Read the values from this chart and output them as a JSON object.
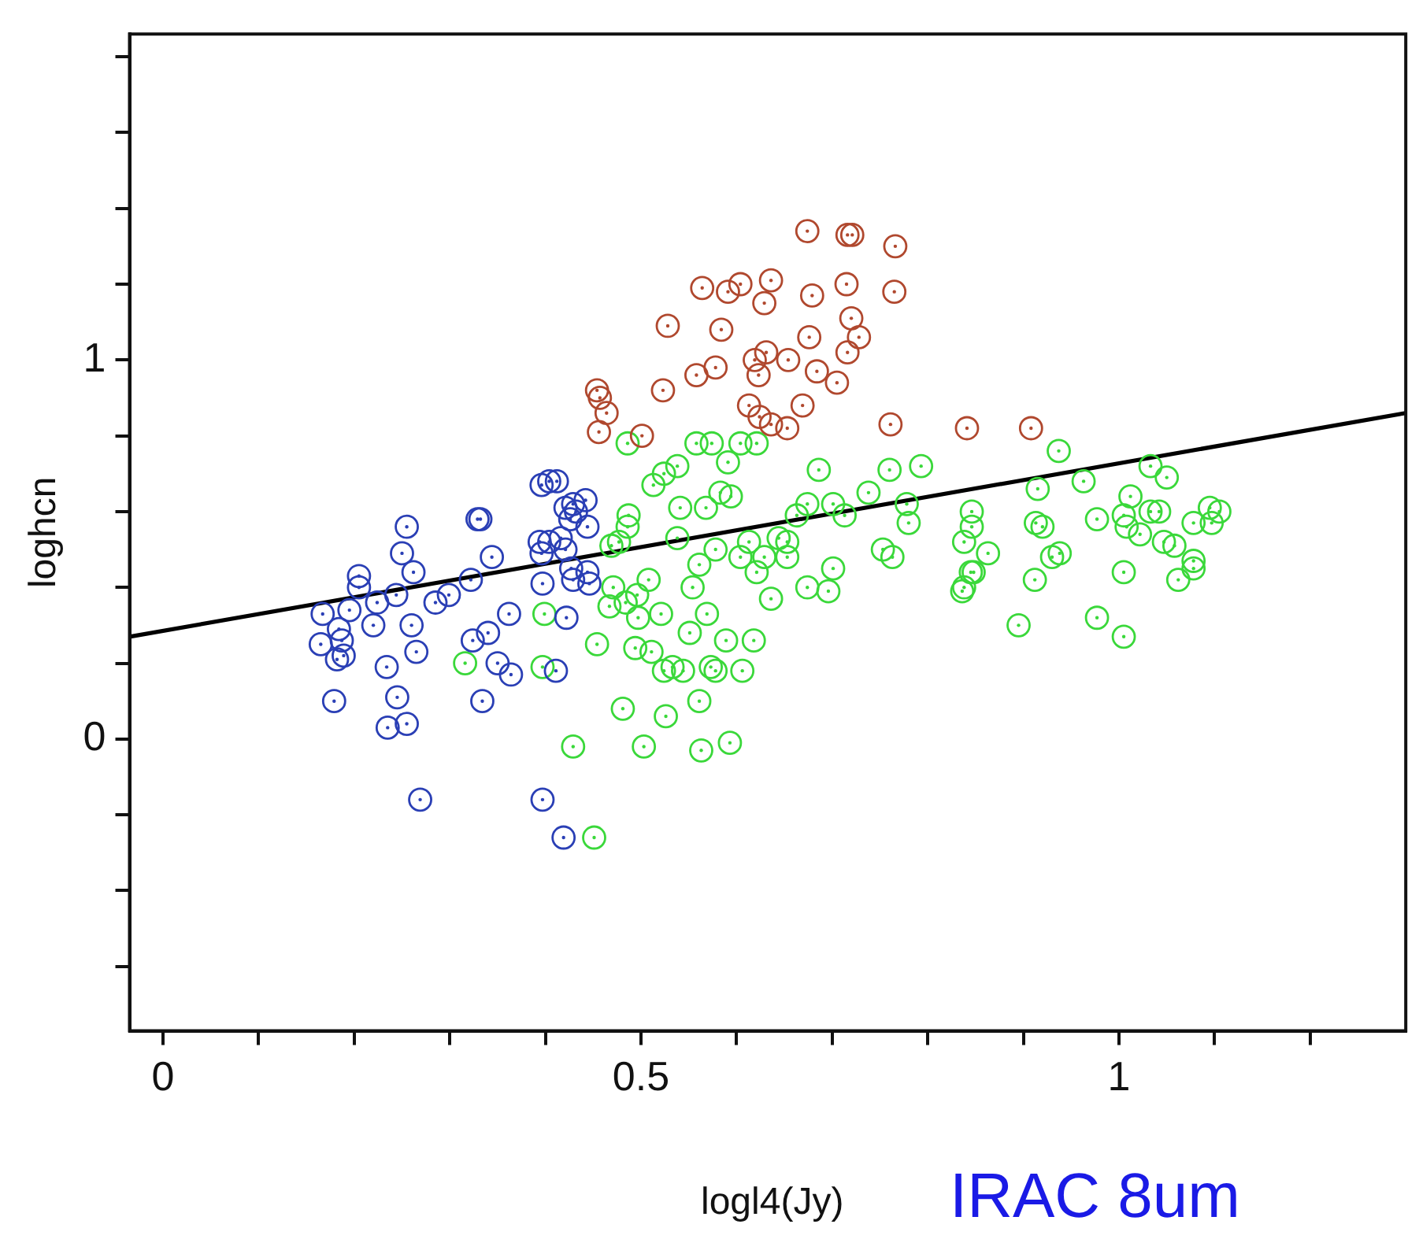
{
  "chart_data": {
    "type": "scatter",
    "xlabel": "logl4(Jy)",
    "ylabel": "loghcn",
    "annotations": [
      "IRAC 8um"
    ],
    "xlim": [
      -0.035,
      1.3
    ],
    "ylim": [
      -0.77,
      1.86
    ],
    "xticks": [
      {
        "value": 0,
        "label": "0"
      },
      {
        "value": 0.1,
        "label": null
      },
      {
        "value": 0.2,
        "label": null
      },
      {
        "value": 0.3,
        "label": null
      },
      {
        "value": 0.4,
        "label": null
      },
      {
        "value": 0.5,
        "label": "0.5"
      },
      {
        "value": 0.6,
        "label": null
      },
      {
        "value": 0.7,
        "label": null
      },
      {
        "value": 0.8,
        "label": null
      },
      {
        "value": 0.9,
        "label": null
      },
      {
        "value": 1,
        "label": "1"
      },
      {
        "value": 1.1,
        "label": null
      },
      {
        "value": 1.2,
        "label": null
      }
    ],
    "yticks": [
      {
        "value": -0.6,
        "label": null
      },
      {
        "value": -0.4,
        "label": null
      },
      {
        "value": -0.2,
        "label": null
      },
      {
        "value": 0,
        "label": "0"
      },
      {
        "value": 0.2,
        "label": null
      },
      {
        "value": 0.4,
        "label": null
      },
      {
        "value": 0.6,
        "label": null
      },
      {
        "value": 0.8,
        "label": null
      },
      {
        "value": 1,
        "label": "1"
      },
      {
        "value": 1.2,
        "label": null
      },
      {
        "value": 1.4,
        "label": null
      },
      {
        "value": 1.6,
        "label": null
      },
      {
        "value": 1.8,
        "label": null
      }
    ],
    "legend": false,
    "series": [
      {
        "color": "#2a3fb5",
        "marker": "circle",
        "x": [
          0.255,
          0.25,
          0.262,
          0.205,
          0.205,
          0.167,
          0.195,
          0.224,
          0.244,
          0.22,
          0.184,
          0.187,
          0.165,
          0.189,
          0.182,
          0.26,
          0.265,
          0.234,
          0.179,
          0.245,
          0.235,
          0.255,
          0.269,
          0.285,
          0.299,
          0.322,
          0.329,
          0.332,
          0.344,
          0.362,
          0.34,
          0.324,
          0.35,
          0.364,
          0.334,
          0.397,
          0.422,
          0.411,
          0.397,
          0.419,
          0.404,
          0.412,
          0.396,
          0.429,
          0.442,
          0.432,
          0.421,
          0.426,
          0.444,
          0.394,
          0.404,
          0.396,
          0.416,
          0.421,
          0.427,
          0.444,
          0.429,
          0.446
        ],
        "values": [
          0.56,
          0.49,
          0.44,
          0.43,
          0.4,
          0.33,
          0.34,
          0.36,
          0.38,
          0.3,
          0.29,
          0.26,
          0.25,
          0.22,
          0.21,
          0.3,
          0.23,
          0.19,
          0.1,
          0.11,
          0.03,
          0.04,
          -0.16,
          0.36,
          0.38,
          0.42,
          0.58,
          0.58,
          0.48,
          0.33,
          0.28,
          0.26,
          0.2,
          0.17,
          0.1,
          0.41,
          0.32,
          0.18,
          -0.16,
          -0.26,
          0.68,
          0.68,
          0.67,
          0.62,
          0.63,
          0.6,
          0.61,
          0.58,
          0.56,
          0.52,
          0.52,
          0.49,
          0.53,
          0.5,
          0.45,
          0.44,
          0.42,
          0.41
        ]
      },
      {
        "color": "#b0482e",
        "marker": "circle",
        "x": [
          0.674,
          0.716,
          0.721,
          0.766,
          0.564,
          0.591,
          0.604,
          0.636,
          0.629,
          0.679,
          0.715,
          0.765,
          0.528,
          0.584,
          0.72,
          0.728,
          0.676,
          0.716,
          0.631,
          0.619,
          0.623,
          0.654,
          0.684,
          0.705,
          0.578,
          0.558,
          0.523,
          0.669,
          0.613,
          0.624,
          0.636,
          0.653,
          0.454,
          0.457,
          0.464,
          0.456,
          0.501,
          0.761,
          0.841,
          0.908
        ],
        "values": [
          1.34,
          1.33,
          1.33,
          1.3,
          1.19,
          1.18,
          1.2,
          1.21,
          1.15,
          1.17,
          1.2,
          1.18,
          1.09,
          1.08,
          1.11,
          1.06,
          1.06,
          1.02,
          1.02,
          1.0,
          0.96,
          1.0,
          0.97,
          0.94,
          0.98,
          0.96,
          0.92,
          0.88,
          0.88,
          0.85,
          0.83,
          0.82,
          0.92,
          0.9,
          0.86,
          0.81,
          0.8,
          0.83,
          0.82,
          0.82
        ]
      },
      {
        "color": "#3ad83a",
        "marker": "circle",
        "x": [
          0.486,
          0.558,
          0.574,
          0.604,
          0.621,
          0.591,
          0.538,
          0.524,
          0.513,
          0.686,
          0.76,
          0.793,
          0.541,
          0.568,
          0.583,
          0.594,
          0.738,
          0.674,
          0.663,
          0.701,
          0.713,
          0.778,
          0.78,
          0.487,
          0.486,
          0.477,
          0.469,
          0.538,
          0.578,
          0.613,
          0.644,
          0.653,
          0.604,
          0.629,
          0.653,
          0.621,
          0.561,
          0.554,
          0.753,
          0.763,
          0.701,
          0.674,
          0.696,
          0.636,
          0.471,
          0.508,
          0.496,
          0.467,
          0.484,
          0.497,
          0.521,
          0.569,
          0.551,
          0.454,
          0.494,
          0.511,
          0.589,
          0.618,
          0.524,
          0.533,
          0.544,
          0.573,
          0.578,
          0.606,
          0.481,
          0.561,
          0.526,
          0.429,
          0.503,
          0.563,
          0.593,
          0.451,
          0.838,
          0.846,
          0.838,
          0.845,
          0.399,
          0.397,
          0.316,
          0.937,
          0.915,
          0.963,
          1.033,
          1.05,
          1.012,
          0.846,
          0.913,
          0.92,
          0.977,
          1.005,
          1.008,
          1.022,
          1.033,
          1.042,
          1.078,
          1.095,
          1.105,
          1.097,
          1.047,
          1.058,
          0.863,
          0.93,
          0.938,
          0.848,
          0.836,
          0.912,
          1.005,
          1.062,
          1.078,
          1.078,
          0.895,
          0.977,
          1.005
        ],
        "values": [
          0.78,
          0.78,
          0.78,
          0.78,
          0.78,
          0.73,
          0.72,
          0.7,
          0.67,
          0.71,
          0.71,
          0.72,
          0.61,
          0.61,
          0.65,
          0.64,
          0.65,
          0.62,
          0.59,
          0.62,
          0.59,
          0.62,
          0.57,
          0.59,
          0.56,
          0.52,
          0.51,
          0.53,
          0.5,
          0.52,
          0.53,
          0.52,
          0.48,
          0.48,
          0.48,
          0.44,
          0.46,
          0.4,
          0.5,
          0.48,
          0.45,
          0.4,
          0.39,
          0.37,
          0.4,
          0.42,
          0.38,
          0.35,
          0.36,
          0.32,
          0.33,
          0.33,
          0.28,
          0.25,
          0.24,
          0.23,
          0.26,
          0.26,
          0.18,
          0.19,
          0.18,
          0.19,
          0.18,
          0.18,
          0.08,
          0.1,
          0.06,
          -0.02,
          -0.02,
          -0.03,
          -0.01,
          -0.26,
          0.52,
          0.6,
          0.4,
          0.44,
          0.33,
          0.19,
          0.2,
          0.76,
          0.66,
          0.68,
          0.72,
          0.69,
          0.64,
          0.56,
          0.57,
          0.56,
          0.58,
          0.59,
          0.56,
          0.54,
          0.6,
          0.6,
          0.57,
          0.61,
          0.6,
          0.57,
          0.52,
          0.51,
          0.49,
          0.48,
          0.49,
          0.44,
          0.39,
          0.42,
          0.44,
          0.42,
          0.47,
          0.45,
          0.3,
          0.32,
          0.27
        ]
      },
      {
        "type": "line",
        "marker": "none",
        "color": "#000000",
        "line_style": "solid",
        "x": [
          -0.035,
          1.3
        ],
        "values": [
          0.27,
          0.86
        ]
      }
    ]
  }
}
